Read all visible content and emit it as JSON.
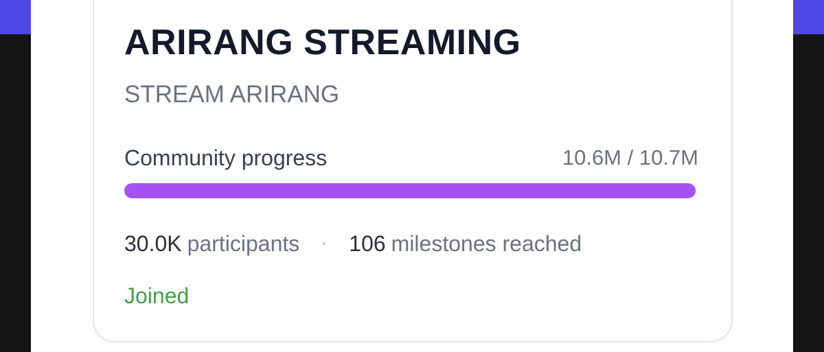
{
  "card": {
    "title": "ARIRANG STREAMING",
    "subtitle": "STREAM ARIRANG",
    "progress": {
      "label": "Community progress",
      "value": "10.6M / 10.7M"
    },
    "stats": [
      {
        "value": "30.0K",
        "label": "participants"
      },
      {
        "value": "106",
        "label": "milestones reached"
      }
    ],
    "status": "Joined"
  }
}
